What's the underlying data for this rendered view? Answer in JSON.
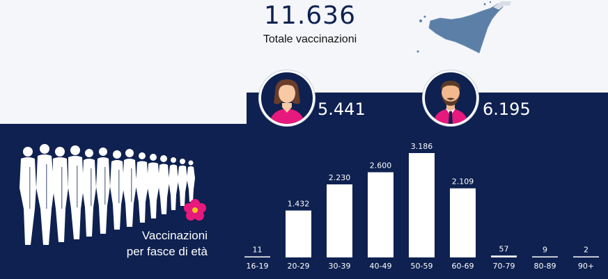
{
  "header": {
    "total_value": "11.636",
    "total_label": "Totale vaccinazioni"
  },
  "map": {
    "icon": "sicily-map-icon",
    "color": "#5b7fa6"
  },
  "gender": {
    "female": {
      "icon": "woman-avatar-icon",
      "value": "5.441"
    },
    "male": {
      "icon": "man-avatar-icon",
      "value": "6.195"
    }
  },
  "age_section": {
    "title_line1": "Vaccinazioni",
    "title_line2": "per fasce di età",
    "crowd_icon": "queue-crowd-icon",
    "flower_icon": "primrose-flower-icon"
  },
  "colors": {
    "navy": "#0e2150",
    "background": "#f5f6fa",
    "shirt_pink": "#e8197d",
    "flower_pink": "#e8197d",
    "flower_center": "#f5c518"
  },
  "chart_data": {
    "type": "bar",
    "title": "",
    "xlabel": "",
    "ylabel": "",
    "categories": [
      "16-19",
      "20-29",
      "30-39",
      "40-49",
      "50-59",
      "60-69",
      "70-79",
      "80-89",
      "90+"
    ],
    "values": [
      11,
      1432,
      2230,
      2600,
      3186,
      2109,
      57,
      9,
      2
    ],
    "value_labels": [
      "11",
      "1.432",
      "2.230",
      "2.600",
      "3.186",
      "2.109",
      "57",
      "9",
      "2"
    ],
    "ylim": [
      0,
      3186
    ],
    "grid": false
  }
}
